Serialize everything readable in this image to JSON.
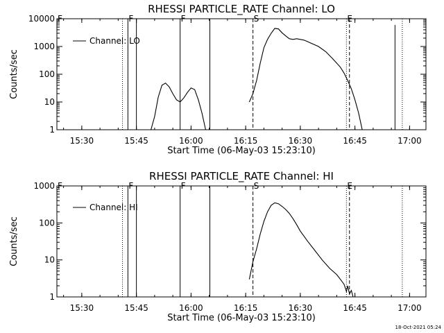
{
  "footer": {
    "timestamp": "18-Oct-2021 05:24"
  },
  "chart_data": [
    {
      "type": "line",
      "title": "RHESSI PARTICLE_RATE Channel: LO",
      "xlabel": "Start Time (06-May-03 15:23:10)",
      "ylabel": "Counts/sec",
      "y_scale": "log",
      "xlim": [
        "15:23:10",
        "17:04:30"
      ],
      "ylim": [
        1,
        10000
      ],
      "x_ticks": [
        "15:30",
        "15:45",
        "16:00",
        "16:15",
        "16:30",
        "16:45",
        "17:00"
      ],
      "y_ticks": [
        "1",
        "10",
        "100",
        "1000",
        "10000"
      ],
      "legend": {
        "label": "Channel: LO",
        "placement": "top-left"
      },
      "series": [
        {
          "name": "Channel: LO",
          "x": [
            "15:49:00",
            "15:50:00",
            "15:51:00",
            "15:52:00",
            "15:53:00",
            "15:54:00",
            "15:55:00",
            "15:56:00",
            "15:57:00",
            "15:58:00",
            "15:59:00",
            "16:00:00",
            "16:01:00",
            "16:02:00",
            "16:03:00",
            "16:04:00"
          ],
          "values": [
            1,
            3,
            15,
            40,
            48,
            35,
            20,
            12,
            10,
            14,
            22,
            32,
            28,
            12,
            4,
            1
          ]
        },
        {
          "name": "Channel: LO",
          "x": [
            "16:16:00",
            "16:17:00",
            "16:18:00",
            "16:19:00",
            "16:20:00",
            "16:21:00",
            "16:22:00",
            "16:23:00",
            "16:24:00",
            "16:25:00",
            "16:26:00",
            "16:27:00",
            "16:28:00",
            "16:29:00",
            "16:30:00",
            "16:31:00",
            "16:32:00",
            "16:33:00",
            "16:35:00",
            "16:37:00",
            "16:39:00",
            "16:41:00",
            "16:42:00",
            "16:43:00",
            "16:44:00",
            "16:45:00",
            "16:46:00",
            "16:47:00"
          ],
          "values": [
            10,
            20,
            60,
            250,
            900,
            1800,
            3000,
            4500,
            4300,
            3100,
            2400,
            1900,
            1800,
            1900,
            1800,
            1700,
            1500,
            1300,
            1000,
            650,
            350,
            180,
            110,
            60,
            30,
            12,
            4,
            1
          ]
        }
      ],
      "flags": [
        {
          "label": "F",
          "time": "15:23:10",
          "style": "dotted"
        },
        {
          "label": "",
          "time": "15:41:10",
          "style": "dotted"
        },
        {
          "label": "F",
          "time": "15:42:40",
          "style": "solid"
        },
        {
          "label": "",
          "time": "15:45:00",
          "style": "solid"
        },
        {
          "label": "F",
          "time": "15:57:00",
          "style": "solid"
        },
        {
          "label": "",
          "time": "16:05:10",
          "style": "solid"
        },
        {
          "label": "S",
          "time": "16:17:00",
          "style": "dashed"
        },
        {
          "label": "E",
          "time": "16:42:40",
          "style": "dotted"
        },
        {
          "label": "",
          "time": "16:43:30",
          "style": "dashed"
        },
        {
          "label": "",
          "time": "16:56:00",
          "style": "solid-spike"
        },
        {
          "label": "",
          "time": "16:58:00",
          "style": "dotted"
        }
      ]
    },
    {
      "type": "line",
      "title": "RHESSI PARTICLE_RATE Channel: HI",
      "xlabel": "Start Time (06-May-03 15:23:10)",
      "ylabel": "Counts/sec",
      "y_scale": "log",
      "xlim": [
        "15:23:10",
        "17:04:30"
      ],
      "ylim": [
        1,
        1000
      ],
      "x_ticks": [
        "15:30",
        "15:45",
        "16:00",
        "16:15",
        "16:30",
        "16:45",
        "17:00"
      ],
      "y_ticks": [
        "1",
        "10",
        "100",
        "1000"
      ],
      "legend": {
        "label": "Channel: HI",
        "placement": "top-left"
      },
      "series": [
        {
          "name": "Channel: HI",
          "x": [
            "16:16:00",
            "16:17:00",
            "16:18:00",
            "16:19:00",
            "16:20:00",
            "16:21:00",
            "16:22:00",
            "16:23:00",
            "16:24:00",
            "16:25:00",
            "16:26:00",
            "16:27:00",
            "16:28:00",
            "16:29:00",
            "16:30:00",
            "16:32:00",
            "16:34:00",
            "16:36:00",
            "16:38:00",
            "16:40:00",
            "16:41:00",
            "16:42:00",
            "16:42:40",
            "16:43:00",
            "16:43:30",
            "16:44:00",
            "16:44:30"
          ],
          "values": [
            3,
            9,
            20,
            50,
            110,
            200,
            300,
            350,
            330,
            280,
            230,
            180,
            130,
            90,
            60,
            32,
            18,
            10,
            6,
            4,
            3,
            2.2,
            1.4,
            2.0,
            1.2,
            1.5,
            1
          ]
        }
      ],
      "flags": [
        {
          "label": "F",
          "time": "15:23:10",
          "style": "dotted"
        },
        {
          "label": "",
          "time": "15:41:10",
          "style": "dotted"
        },
        {
          "label": "F",
          "time": "15:42:40",
          "style": "solid"
        },
        {
          "label": "",
          "time": "15:45:00",
          "style": "solid"
        },
        {
          "label": "F",
          "time": "15:57:00",
          "style": "solid"
        },
        {
          "label": "",
          "time": "16:05:10",
          "style": "solid"
        },
        {
          "label": "S",
          "time": "16:17:00",
          "style": "dashed"
        },
        {
          "label": "E",
          "time": "16:42:40",
          "style": "dotted"
        },
        {
          "label": "",
          "time": "16:43:30",
          "style": "dashed"
        },
        {
          "label": "",
          "time": "16:58:00",
          "style": "dotted"
        }
      ]
    }
  ]
}
